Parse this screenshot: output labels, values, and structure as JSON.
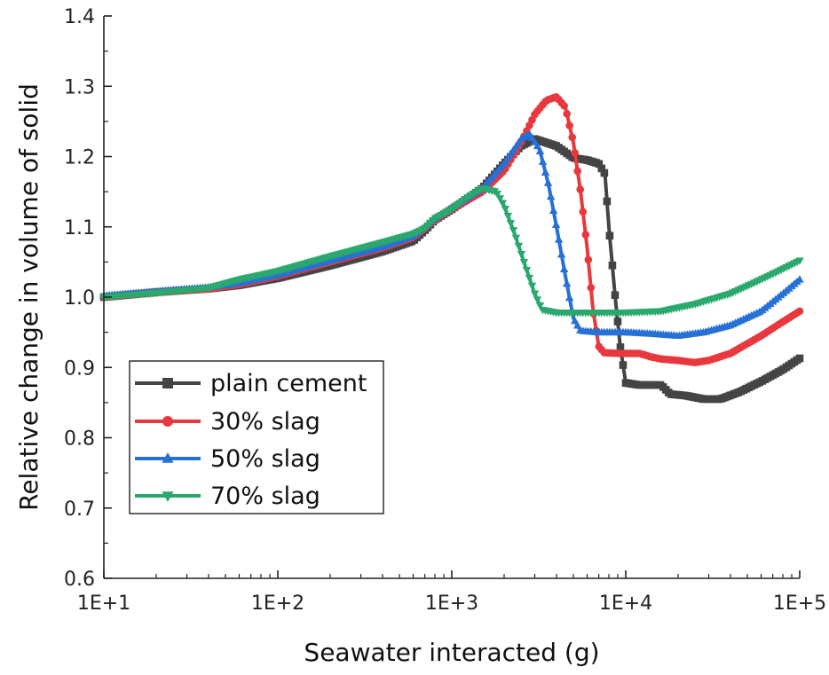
{
  "chart_data": {
    "type": "line",
    "xlabel": "Seawater interacted (g)",
    "ylabel": "Relative change in volume of solid",
    "xscale": "log",
    "xlim": [
      10,
      100000
    ],
    "ylim": [
      0.6,
      1.4
    ],
    "xticks": [
      {
        "value": 10,
        "label": "1E+1"
      },
      {
        "value": 100,
        "label": "1E+2"
      },
      {
        "value": 1000,
        "label": "1E+3"
      },
      {
        "value": 10000,
        "label": "1E+4"
      },
      {
        "value": 100000,
        "label": "1E+5"
      }
    ],
    "yticks": [
      {
        "value": 0.6,
        "label": "0.6"
      },
      {
        "value": 0.7,
        "label": "0.7"
      },
      {
        "value": 0.8,
        "label": "0.8"
      },
      {
        "value": 0.9,
        "label": "0.9"
      },
      {
        "value": 1.0,
        "label": "1.0"
      },
      {
        "value": 1.1,
        "label": "1.1"
      },
      {
        "value": 1.2,
        "label": "1.2"
      },
      {
        "value": 1.3,
        "label": "1.3"
      },
      {
        "value": 1.4,
        "label": "1.4"
      }
    ],
    "grid": false,
    "legend_position": "bottom-left",
    "series": [
      {
        "name": "plain cement",
        "color": "#444444",
        "marker": "square",
        "points": [
          [
            10,
            1.0
          ],
          [
            20,
            1.007
          ],
          [
            40,
            1.012
          ],
          [
            60,
            1.017
          ],
          [
            100,
            1.027
          ],
          [
            200,
            1.045
          ],
          [
            400,
            1.065
          ],
          [
            600,
            1.08
          ],
          [
            700,
            1.095
          ],
          [
            800,
            1.11
          ],
          [
            1000,
            1.125
          ],
          [
            1500,
            1.155
          ],
          [
            2000,
            1.19
          ],
          [
            2500,
            1.215
          ],
          [
            3000,
            1.225
          ],
          [
            4000,
            1.215
          ],
          [
            5000,
            1.198
          ],
          [
            6000,
            1.195
          ],
          [
            7000,
            1.19
          ],
          [
            7600,
            1.175
          ],
          [
            8000,
            1.1
          ],
          [
            8700,
            1.0
          ],
          [
            9300,
            0.93
          ],
          [
            10000,
            0.878
          ],
          [
            12000,
            0.875
          ],
          [
            14000,
            0.875
          ],
          [
            16000,
            0.875
          ],
          [
            18000,
            0.862
          ],
          [
            22000,
            0.86
          ],
          [
            28000,
            0.855
          ],
          [
            35000,
            0.855
          ],
          [
            45000,
            0.865
          ],
          [
            60000,
            0.88
          ],
          [
            80000,
            0.897
          ],
          [
            100000,
            0.913
          ]
        ]
      },
      {
        "name": "30% slag",
        "color": "#e8383d",
        "marker": "circle",
        "points": [
          [
            10,
            1.0
          ],
          [
            20,
            1.007
          ],
          [
            40,
            1.012
          ],
          [
            60,
            1.018
          ],
          [
            100,
            1.03
          ],
          [
            200,
            1.05
          ],
          [
            400,
            1.07
          ],
          [
            600,
            1.085
          ],
          [
            700,
            1.098
          ],
          [
            800,
            1.11
          ],
          [
            1000,
            1.125
          ],
          [
            1500,
            1.15
          ],
          [
            2000,
            1.18
          ],
          [
            2500,
            1.22
          ],
          [
            3000,
            1.26
          ],
          [
            3500,
            1.28
          ],
          [
            4000,
            1.285
          ],
          [
            4500,
            1.27
          ],
          [
            5000,
            1.22
          ],
          [
            5500,
            1.15
          ],
          [
            6000,
            1.07
          ],
          [
            6500,
            0.98
          ],
          [
            7000,
            0.93
          ],
          [
            7500,
            0.921
          ],
          [
            9000,
            0.92
          ],
          [
            12000,
            0.92
          ],
          [
            14000,
            0.915
          ],
          [
            16000,
            0.912
          ],
          [
            20000,
            0.91
          ],
          [
            25000,
            0.907
          ],
          [
            30000,
            0.91
          ],
          [
            40000,
            0.92
          ],
          [
            60000,
            0.945
          ],
          [
            80000,
            0.965
          ],
          [
            100000,
            0.98
          ]
        ]
      },
      {
        "name": "50% slag",
        "color": "#2670d6",
        "marker": "triangle-up",
        "points": [
          [
            10,
            1.002
          ],
          [
            20,
            1.008
          ],
          [
            40,
            1.014
          ],
          [
            60,
            1.02
          ],
          [
            100,
            1.032
          ],
          [
            200,
            1.052
          ],
          [
            400,
            1.072
          ],
          [
            600,
            1.087
          ],
          [
            700,
            1.1
          ],
          [
            800,
            1.112
          ],
          [
            1000,
            1.127
          ],
          [
            1500,
            1.155
          ],
          [
            2000,
            1.19
          ],
          [
            2500,
            1.225
          ],
          [
            2800,
            1.232
          ],
          [
            3200,
            1.21
          ],
          [
            3600,
            1.16
          ],
          [
            4000,
            1.1
          ],
          [
            4500,
            1.03
          ],
          [
            5000,
            0.97
          ],
          [
            5500,
            0.952
          ],
          [
            7000,
            0.95
          ],
          [
            10000,
            0.95
          ],
          [
            14000,
            0.948
          ],
          [
            20000,
            0.945
          ],
          [
            28000,
            0.95
          ],
          [
            40000,
            0.96
          ],
          [
            60000,
            0.98
          ],
          [
            80000,
            1.005
          ],
          [
            100000,
            1.025
          ]
        ]
      },
      {
        "name": "70% slag",
        "color": "#2aa86d",
        "marker": "triangle-down",
        "points": [
          [
            10,
            1.0
          ],
          [
            20,
            1.006
          ],
          [
            40,
            1.013
          ],
          [
            60,
            1.025
          ],
          [
            100,
            1.037
          ],
          [
            200,
            1.058
          ],
          [
            400,
            1.078
          ],
          [
            600,
            1.09
          ],
          [
            700,
            1.098
          ],
          [
            800,
            1.112
          ],
          [
            1000,
            1.125
          ],
          [
            1200,
            1.14
          ],
          [
            1500,
            1.155
          ],
          [
            1800,
            1.15
          ],
          [
            2000,
            1.13
          ],
          [
            2300,
            1.09
          ],
          [
            2600,
            1.05
          ],
          [
            3000,
            1.005
          ],
          [
            3300,
            0.982
          ],
          [
            4000,
            0.978
          ],
          [
            6000,
            0.978
          ],
          [
            10000,
            0.978
          ],
          [
            16000,
            0.98
          ],
          [
            25000,
            0.99
          ],
          [
            40000,
            1.005
          ],
          [
            60000,
            1.025
          ],
          [
            80000,
            1.04
          ],
          [
            100000,
            1.052
          ]
        ]
      }
    ]
  }
}
